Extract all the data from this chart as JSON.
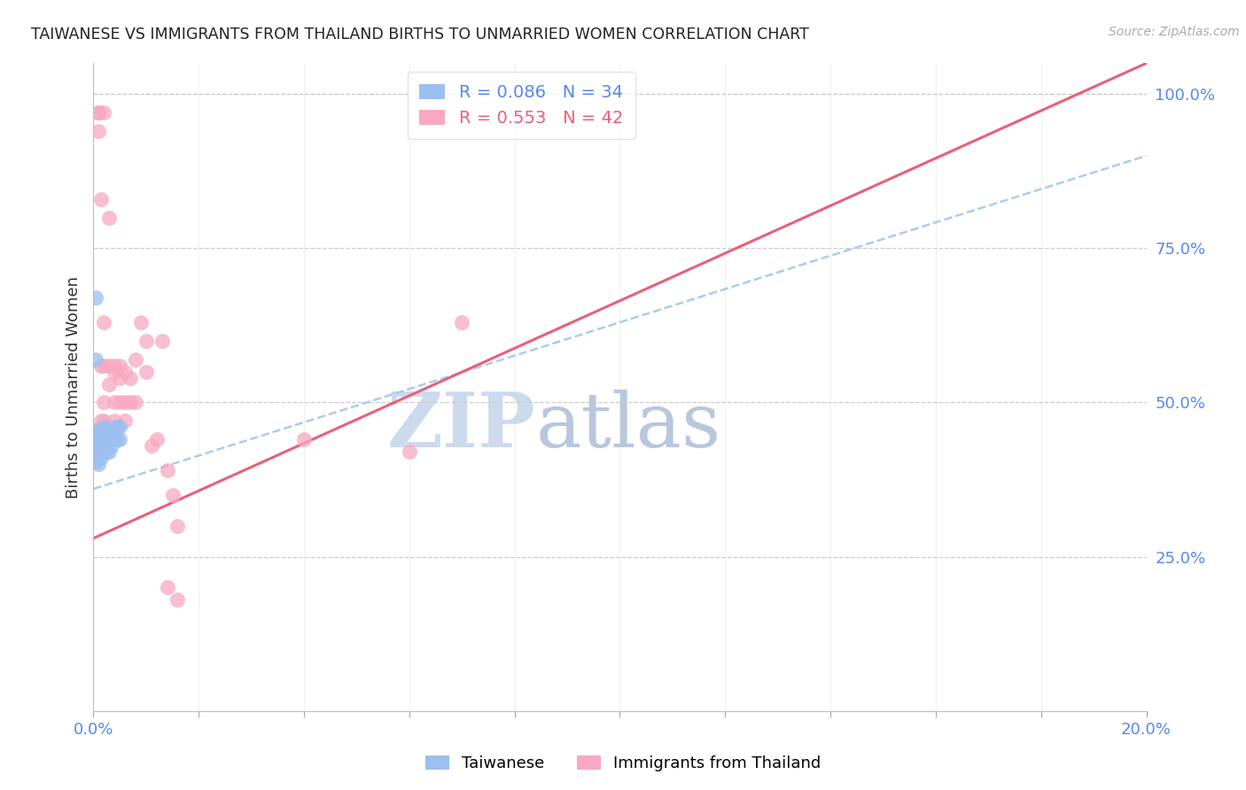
{
  "title": "TAIWANESE VS IMMIGRANTS FROM THAILAND BIRTHS TO UNMARRIED WOMEN CORRELATION CHART",
  "source": "Source: ZipAtlas.com",
  "ylabel": "Births to Unmarried Women",
  "xmin": 0.0,
  "xmax": 0.2,
  "ymin": 0.0,
  "ymax": 1.05,
  "x_ticks": [
    0.0,
    0.02,
    0.04,
    0.06,
    0.08,
    0.1,
    0.12,
    0.14,
    0.16,
    0.18,
    0.2
  ],
  "y_ticks_right": [
    0.25,
    0.5,
    0.75,
    1.0
  ],
  "watermark_zip": "ZIP",
  "watermark_atlas": "atlas",
  "watermark_color_zip": "#d0dff0",
  "watermark_color_atlas": "#b8c8e0",
  "taiwanese_color": "#9bbfee",
  "thailand_color": "#f8a8c0",
  "taiwanese_line_color": "#aaccee",
  "thailand_line_color": "#e8607a",
  "title_color": "#222222",
  "axis_label_color": "#333333",
  "tick_label_color": "#5588ee",
  "grid_color": "#cccccc",
  "background_color": "#ffffff",
  "R_taiwan": 0.086,
  "N_taiwan": 34,
  "R_thailand": 0.553,
  "N_thailand": 42,
  "tw_line_x0": 0.0,
  "tw_line_y0": 0.36,
  "tw_line_x1": 0.2,
  "tw_line_y1": 0.9,
  "th_line_x0": 0.0,
  "th_line_y0": 0.28,
  "th_line_x1": 0.2,
  "th_line_y1": 1.05,
  "taiwanese_x": [
    0.0005,
    0.0005,
    0.0005,
    0.0005,
    0.0005,
    0.001,
    0.001,
    0.001,
    0.001,
    0.001,
    0.001,
    0.0015,
    0.0015,
    0.0015,
    0.0015,
    0.002,
    0.002,
    0.002,
    0.0025,
    0.0025,
    0.0025,
    0.003,
    0.003,
    0.003,
    0.0035,
    0.0035,
    0.004,
    0.004,
    0.0045,
    0.0045,
    0.005,
    0.005,
    0.0005,
    0.0005
  ],
  "taiwanese_y": [
    0.455,
    0.445,
    0.435,
    0.42,
    0.405,
    0.455,
    0.445,
    0.44,
    0.43,
    0.42,
    0.4,
    0.455,
    0.445,
    0.43,
    0.41,
    0.46,
    0.45,
    0.435,
    0.45,
    0.44,
    0.42,
    0.455,
    0.44,
    0.42,
    0.45,
    0.43,
    0.46,
    0.44,
    0.46,
    0.44,
    0.46,
    0.44,
    0.67,
    0.57
  ],
  "thailand_x": [
    0.001,
    0.001,
    0.001,
    0.0015,
    0.002,
    0.002,
    0.002,
    0.002,
    0.003,
    0.003,
    0.003,
    0.004,
    0.004,
    0.004,
    0.004,
    0.005,
    0.005,
    0.005,
    0.006,
    0.006,
    0.006,
    0.007,
    0.007,
    0.008,
    0.008,
    0.009,
    0.01,
    0.01,
    0.011,
    0.012,
    0.013,
    0.014,
    0.014,
    0.015,
    0.016,
    0.016,
    0.04,
    0.06,
    0.07,
    0.0015,
    0.0015,
    0.002
  ],
  "thailand_y": [
    0.97,
    0.97,
    0.94,
    0.83,
    0.97,
    0.56,
    0.5,
    0.47,
    0.8,
    0.56,
    0.53,
    0.56,
    0.55,
    0.5,
    0.47,
    0.56,
    0.54,
    0.5,
    0.55,
    0.5,
    0.47,
    0.54,
    0.5,
    0.57,
    0.5,
    0.63,
    0.6,
    0.55,
    0.43,
    0.44,
    0.6,
    0.39,
    0.2,
    0.35,
    0.3,
    0.18,
    0.44,
    0.42,
    0.63,
    0.56,
    0.47,
    0.63
  ]
}
